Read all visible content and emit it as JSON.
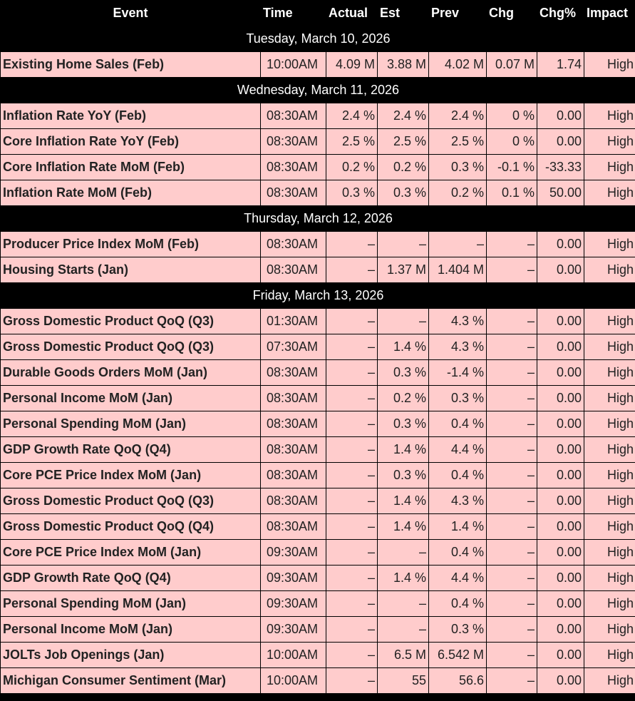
{
  "headers": {
    "event": "Event",
    "time": "Time",
    "actual": "Actual",
    "est": "Est",
    "prev": "Prev",
    "chg": "Chg",
    "chg_pct": "Chg%",
    "impact": "Impact"
  },
  "rows": [
    {
      "type": "date",
      "label": "Tuesday, March 10, 2026"
    },
    {
      "type": "event",
      "event": "Existing Home Sales (Feb)",
      "time": "10:00AM",
      "actual": "4.09 M",
      "est": "3.88 M",
      "prev": "4.02 M",
      "chg": "0.07 M",
      "chg_pct": "1.74",
      "impact": "High"
    },
    {
      "type": "date",
      "label": "Wednesday, March 11, 2026"
    },
    {
      "type": "event",
      "event": "Inflation Rate YoY (Feb)",
      "time": "08:30AM",
      "actual": "2.4 %",
      "est": "2.4 %",
      "prev": "2.4 %",
      "chg": "0 %",
      "chg_pct": "0.00",
      "impact": "High"
    },
    {
      "type": "event",
      "event": "Core Inflation Rate YoY (Feb)",
      "time": "08:30AM",
      "actual": "2.5 %",
      "est": "2.5 %",
      "prev": "2.5 %",
      "chg": "0 %",
      "chg_pct": "0.00",
      "impact": "High"
    },
    {
      "type": "event",
      "event": "Core Inflation Rate MoM (Feb)",
      "time": "08:30AM",
      "actual": "0.2 %",
      "est": "0.2 %",
      "prev": "0.3 %",
      "chg": "-0.1 %",
      "chg_pct": "-33.33",
      "impact": "High"
    },
    {
      "type": "event",
      "event": "Inflation Rate MoM (Feb)",
      "time": "08:30AM",
      "actual": "0.3 %",
      "est": "0.3 %",
      "prev": "0.2 %",
      "chg": "0.1 %",
      "chg_pct": "50.00",
      "impact": "High"
    },
    {
      "type": "date",
      "label": "Thursday, March 12, 2026"
    },
    {
      "type": "event",
      "event": "Producer Price Index MoM (Feb)",
      "time": "08:30AM",
      "actual": "–",
      "est": "–",
      "prev": "–",
      "chg": "–",
      "chg_pct": "0.00",
      "impact": "High"
    },
    {
      "type": "event",
      "event": "Housing Starts (Jan)",
      "time": "08:30AM",
      "actual": "–",
      "est": "1.37 M",
      "prev": "1.404 M",
      "chg": "–",
      "chg_pct": "0.00",
      "impact": "High"
    },
    {
      "type": "date",
      "label": "Friday, March 13, 2026"
    },
    {
      "type": "event",
      "event": "Gross Domestic Product QoQ (Q3)",
      "time": "01:30AM",
      "actual": "–",
      "est": "–",
      "prev": "4.3 %",
      "chg": "–",
      "chg_pct": "0.00",
      "impact": "High"
    },
    {
      "type": "event",
      "event": "Gross Domestic Product QoQ (Q3)",
      "time": "07:30AM",
      "actual": "–",
      "est": "1.4 %",
      "prev": "4.3 %",
      "chg": "–",
      "chg_pct": "0.00",
      "impact": "High"
    },
    {
      "type": "event",
      "event": "Durable Goods Orders MoM (Jan)",
      "time": "08:30AM",
      "actual": "–",
      "est": "0.3 %",
      "prev": "-1.4 %",
      "chg": "–",
      "chg_pct": "0.00",
      "impact": "High"
    },
    {
      "type": "event",
      "event": "Personal Income MoM (Jan)",
      "time": "08:30AM",
      "actual": "–",
      "est": "0.2 %",
      "prev": "0.3 %",
      "chg": "–",
      "chg_pct": "0.00",
      "impact": "High"
    },
    {
      "type": "event",
      "event": "Personal Spending MoM (Jan)",
      "time": "08:30AM",
      "actual": "–",
      "est": "0.3 %",
      "prev": "0.4 %",
      "chg": "–",
      "chg_pct": "0.00",
      "impact": "High"
    },
    {
      "type": "event",
      "event": "GDP Growth Rate QoQ (Q4)",
      "time": "08:30AM",
      "actual": "–",
      "est": "1.4 %",
      "prev": "4.4 %",
      "chg": "–",
      "chg_pct": "0.00",
      "impact": "High"
    },
    {
      "type": "event",
      "event": "Core PCE Price Index MoM (Jan)",
      "time": "08:30AM",
      "actual": "–",
      "est": "0.3 %",
      "prev": "0.4 %",
      "chg": "–",
      "chg_pct": "0.00",
      "impact": "High"
    },
    {
      "type": "event",
      "event": "Gross Domestic Product QoQ (Q3)",
      "time": "08:30AM",
      "actual": "–",
      "est": "1.4 %",
      "prev": "4.3 %",
      "chg": "–",
      "chg_pct": "0.00",
      "impact": "High"
    },
    {
      "type": "event",
      "event": "Gross Domestic Product QoQ (Q4)",
      "time": "08:30AM",
      "actual": "–",
      "est": "1.4 %",
      "prev": "1.4 %",
      "chg": "–",
      "chg_pct": "0.00",
      "impact": "High"
    },
    {
      "type": "event",
      "event": "Core PCE Price Index MoM (Jan)",
      "time": "09:30AM",
      "actual": "–",
      "est": "–",
      "prev": "0.4 %",
      "chg": "–",
      "chg_pct": "0.00",
      "impact": "High"
    },
    {
      "type": "event",
      "event": "GDP Growth Rate QoQ (Q4)",
      "time": "09:30AM",
      "actual": "–",
      "est": "1.4 %",
      "prev": "4.4 %",
      "chg": "–",
      "chg_pct": "0.00",
      "impact": "High"
    },
    {
      "type": "event",
      "event": "Personal Spending MoM (Jan)",
      "time": "09:30AM",
      "actual": "–",
      "est": "–",
      "prev": "0.4 %",
      "chg": "–",
      "chg_pct": "0.00",
      "impact": "High"
    },
    {
      "type": "event",
      "event": "Personal Income MoM (Jan)",
      "time": "09:30AM",
      "actual": "–",
      "est": "–",
      "prev": "0.3 %",
      "chg": "–",
      "chg_pct": "0.00",
      "impact": "High"
    },
    {
      "type": "event",
      "event": "JOLTs Job Openings (Jan)",
      "time": "10:00AM",
      "actual": "–",
      "est": "6.5 M",
      "prev": "6.542 M",
      "chg": "–",
      "chg_pct": "0.00",
      "impact": "High"
    },
    {
      "type": "event",
      "event": "Michigan Consumer Sentiment (Mar)",
      "time": "10:00AM",
      "actual": "–",
      "est": "55",
      "prev": "56.6",
      "chg": "–",
      "chg_pct": "0.00",
      "impact": "High"
    }
  ]
}
